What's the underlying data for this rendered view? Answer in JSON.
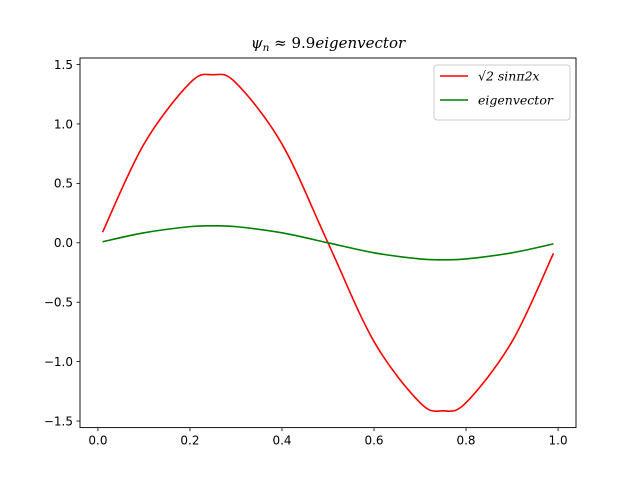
{
  "chart_data": {
    "type": "line",
    "title": "ψn ≈ 9.9eigenvector",
    "xlabel": "",
    "ylabel": "",
    "xlim": [
      -0.039,
      1.039
    ],
    "ylim": [
      -1.555,
      1.555
    ],
    "x_ticks": [
      "0.0",
      "0.2",
      "0.4",
      "0.6",
      "0.8",
      "1.0"
    ],
    "y_ticks": [
      "1.5",
      "1.0",
      "0.5",
      "0.0",
      "−0.5",
      "−1.0",
      "−1.5"
    ],
    "grid": false,
    "legend_position": "top-right",
    "series": [
      {
        "name": "√2 sinπ2x",
        "color": "#ff0000",
        "x": [
          0.01,
          0.1,
          0.2,
          0.25,
          0.3,
          0.4,
          0.5,
          0.6,
          0.7,
          0.75,
          0.8,
          0.9,
          0.99
        ],
        "values": [
          0.089,
          0.831,
          1.345,
          1.414,
          1.345,
          0.831,
          0.0,
          -0.831,
          -1.345,
          -1.414,
          -1.345,
          -0.831,
          -0.089
        ]
      },
      {
        "name": "eigenvector",
        "color": "#008000",
        "x": [
          0.01,
          0.1,
          0.2,
          0.25,
          0.3,
          0.4,
          0.5,
          0.6,
          0.7,
          0.75,
          0.8,
          0.9,
          0.99
        ],
        "values": [
          0.009,
          0.084,
          0.136,
          0.143,
          0.136,
          0.084,
          0.0,
          -0.084,
          -0.136,
          -0.143,
          -0.136,
          -0.084,
          -0.009
        ]
      }
    ]
  }
}
